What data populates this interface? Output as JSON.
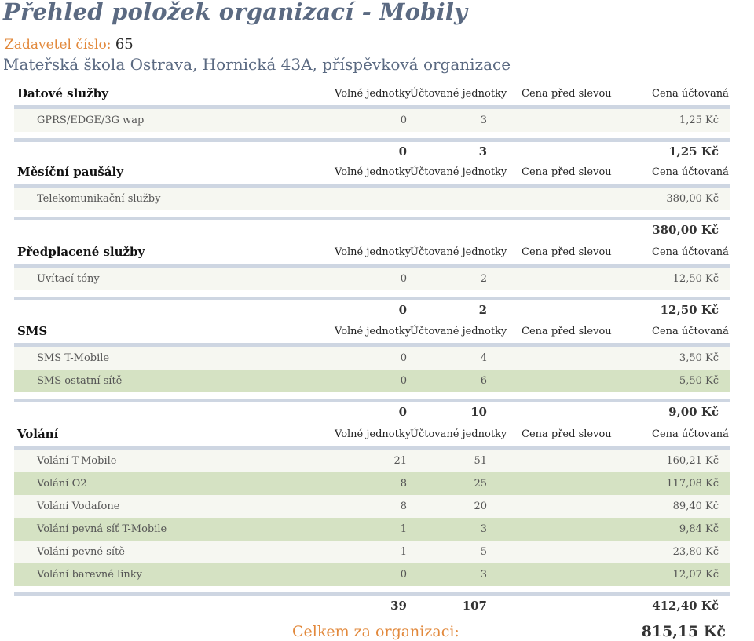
{
  "header": {
    "title": "Přehled položek organizací - Mobily",
    "client_label": "Zadavetel číslo:",
    "client_number": "65",
    "organization": "Mateřská škola Ostrava, Hornická 43A, příspěvková organizace"
  },
  "columns": {
    "free_units": "Volné jednotky",
    "billed_units": "Účtované jednotky",
    "price_before_discount": "Cena před slevou",
    "billed_price": "Cena účtovaná"
  },
  "sections": [
    {
      "title": "Datové služby",
      "rows": [
        {
          "name": "GPRS/EDGE/3G wap",
          "free": "0",
          "billed": "3",
          "before": "",
          "price": "1,25 Kč"
        }
      ],
      "total": {
        "free": "0",
        "billed": "3",
        "price": "1,25 Kč"
      }
    },
    {
      "title": "Měsíční paušály",
      "rows": [
        {
          "name": "Telekomunikační služby",
          "free": "",
          "billed": "",
          "before": "",
          "price": "380,00 Kč"
        }
      ],
      "total": {
        "free": "",
        "billed": "",
        "price": "380,00 Kč"
      }
    },
    {
      "title": "Předplacené služby",
      "rows": [
        {
          "name": "Uvítací tóny",
          "free": "0",
          "billed": "2",
          "before": "",
          "price": "12,50 Kč"
        }
      ],
      "total": {
        "free": "0",
        "billed": "2",
        "price": "12,50 Kč"
      }
    },
    {
      "title": "SMS",
      "rows": [
        {
          "name": "SMS T-Mobile",
          "free": "0",
          "billed": "4",
          "before": "",
          "price": "3,50 Kč"
        },
        {
          "name": "SMS ostatní sítě",
          "free": "0",
          "billed": "6",
          "before": "",
          "price": "5,50 Kč"
        }
      ],
      "total": {
        "free": "0",
        "billed": "10",
        "price": "9,00 Kč"
      }
    },
    {
      "title": "Volání",
      "rows": [
        {
          "name": "Volání T-Mobile",
          "free": "21",
          "billed": "51",
          "before": "",
          "price": "160,21 Kč"
        },
        {
          "name": "Volání O2",
          "free": "8",
          "billed": "25",
          "before": "",
          "price": "117,08 Kč"
        },
        {
          "name": "Volání Vodafone",
          "free": "8",
          "billed": "20",
          "before": "",
          "price": "89,40 Kč"
        },
        {
          "name": "Volání pevná síť T-Mobile",
          "free": "1",
          "billed": "3",
          "before": "",
          "price": "9,84 Kč"
        },
        {
          "name": "Volání pevné sítě",
          "free": "1",
          "billed": "5",
          "before": "",
          "price": "23,80 Kč"
        },
        {
          "name": "Volání barevné linky",
          "free": "0",
          "billed": "3",
          "before": "",
          "price": "12,07 Kč"
        }
      ],
      "total": {
        "free": "39",
        "billed": "107",
        "price": "412,40 Kč"
      }
    }
  ],
  "grand_total": {
    "label": "Celkem za organizaci:",
    "value": "815,15 Kč"
  },
  "colors": {
    "title": "#5b6a82",
    "accent_orange": "#e2893c",
    "divider": "#ced6e2",
    "row_cream": "#f6f7f1",
    "row_green": "#d5e2c3"
  }
}
